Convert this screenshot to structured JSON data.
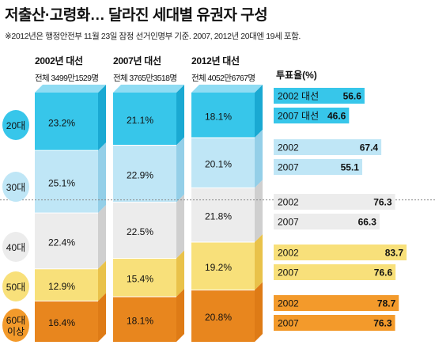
{
  "title": "저출산·고령화… 달라진 세대별 유권자 구성",
  "note": "※2012년은 행정안전부 11월 23일 잠정 선거인명부 기준. 2007, 2012년 20대엔 19세 포함.",
  "colors": {
    "20대": "#37c6ea",
    "30대": "#bfe6f6",
    "40대": "#ececec",
    "50대": "#f8e07a",
    "60대 이상": "#f39a2b"
  },
  "chart_data": [
    {
      "type": "bar",
      "subtype": "stacked-100",
      "categories": [
        "2002년 대선",
        "2007년 대선",
        "2012년 대선"
      ],
      "totals": [
        "전체 3499만1529명",
        "전체 3765만3518명",
        "전체 4052만6767명"
      ],
      "series": [
        {
          "name": "20대",
          "values": [
            23.2,
            21.1,
            18.1
          ]
        },
        {
          "name": "30대",
          "values": [
            25.1,
            22.9,
            20.1
          ]
        },
        {
          "name": "40대",
          "values": [
            22.4,
            22.5,
            21.8
          ]
        },
        {
          "name": "50대",
          "values": [
            12.9,
            15.4,
            19.2
          ]
        },
        {
          "name": "60대 이상",
          "values": [
            16.4,
            18.1,
            20.8
          ]
        }
      ],
      "value_labels": [
        [
          "23.2%",
          "21.1%",
          "18.1%"
        ],
        [
          "25.1%",
          "22.9%",
          "20.1%"
        ],
        [
          "22.4%",
          "22.5%",
          "21.8%"
        ],
        [
          "12.9%",
          "15.4%",
          "19.2%"
        ],
        [
          "16.4%",
          "18.1%",
          "20.8%"
        ]
      ],
      "age_labels": [
        "20대",
        "30대",
        "40대",
        "50대",
        "60대 이상"
      ]
    },
    {
      "type": "bar",
      "orientation": "horizontal",
      "title": "투표율(%)",
      "xlim": [
        0,
        100
      ],
      "rows": [
        {
          "group": "20대",
          "label": "2002 대선",
          "value": 56.6
        },
        {
          "group": "20대",
          "label": "2007 대선",
          "value": 46.6
        },
        {
          "group": "30대",
          "label": "2002",
          "value": 67.4
        },
        {
          "group": "30대",
          "label": "2007",
          "value": 55.1
        },
        {
          "group": "40대",
          "label": "2002",
          "value": 76.3
        },
        {
          "group": "40대",
          "label": "2007",
          "value": 66.3
        },
        {
          "group": "50대",
          "label": "2002",
          "value": 83.7
        },
        {
          "group": "50대",
          "label": "2007",
          "value": 76.6
        },
        {
          "group": "60대 이상",
          "label": "2002",
          "value": 78.7
        },
        {
          "group": "60대 이상",
          "label": "2007",
          "value": 76.3
        }
      ]
    }
  ]
}
